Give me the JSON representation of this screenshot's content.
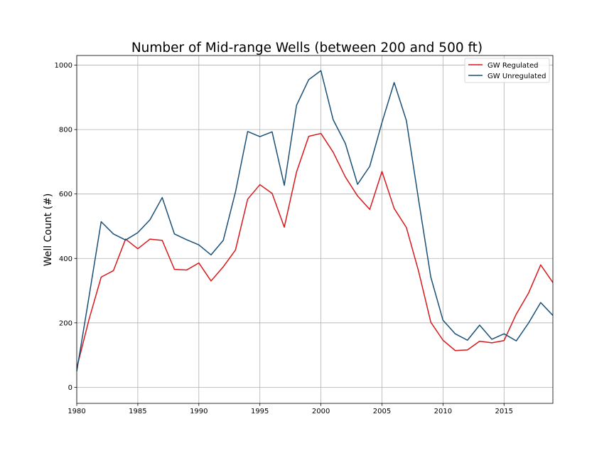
{
  "chart_data": {
    "type": "line",
    "title": "Number of Mid-range Wells (between 200 and 500 ft)",
    "xlabel": "",
    "ylabel": "Well Count (#)",
    "xlim": [
      1980,
      2019
    ],
    "ylim": [
      -50,
      1030
    ],
    "xticks": [
      1980,
      1985,
      1990,
      1995,
      2000,
      2005,
      2010,
      2015
    ],
    "yticks": [
      0,
      200,
      400,
      600,
      800,
      1000
    ],
    "grid": true,
    "legend_position": "top-right",
    "x": [
      1980,
      1981,
      1982,
      1983,
      1984,
      1985,
      1986,
      1987,
      1988,
      1989,
      1990,
      1991,
      1992,
      1993,
      1994,
      1995,
      1996,
      1997,
      1998,
      1999,
      2000,
      2001,
      2002,
      2003,
      2004,
      2005,
      2006,
      2007,
      2008,
      2009,
      2010,
      2011,
      2012,
      2013,
      2014,
      2015,
      2016,
      2017,
      2018,
      2019
    ],
    "series": [
      {
        "name": "GW Regulated",
        "color": "#d7191c",
        "values": [
          60,
          210,
          342,
          362,
          460,
          430,
          460,
          456,
          366,
          364,
          386,
          330,
          374,
          426,
          584,
          629,
          602,
          497,
          668,
          779,
          788,
          730,
          653,
          594,
          552,
          670,
          555,
          496,
          360,
          202,
          146,
          114,
          116,
          143,
          138,
          145,
          227,
          292,
          380,
          325
        ]
      },
      {
        "name": "GW Unregulated",
        "color": "#1a5077",
        "values": [
          50,
          280,
          514,
          476,
          457,
          480,
          520,
          589,
          476,
          458,
          442,
          411,
          456,
          606,
          794,
          778,
          793,
          627,
          875,
          955,
          983,
          831,
          757,
          630,
          686,
          822,
          946,
          828,
          582,
          342,
          208,
          166,
          146,
          193,
          149,
          166,
          144,
          199,
          263,
          223
        ]
      }
    ]
  }
}
